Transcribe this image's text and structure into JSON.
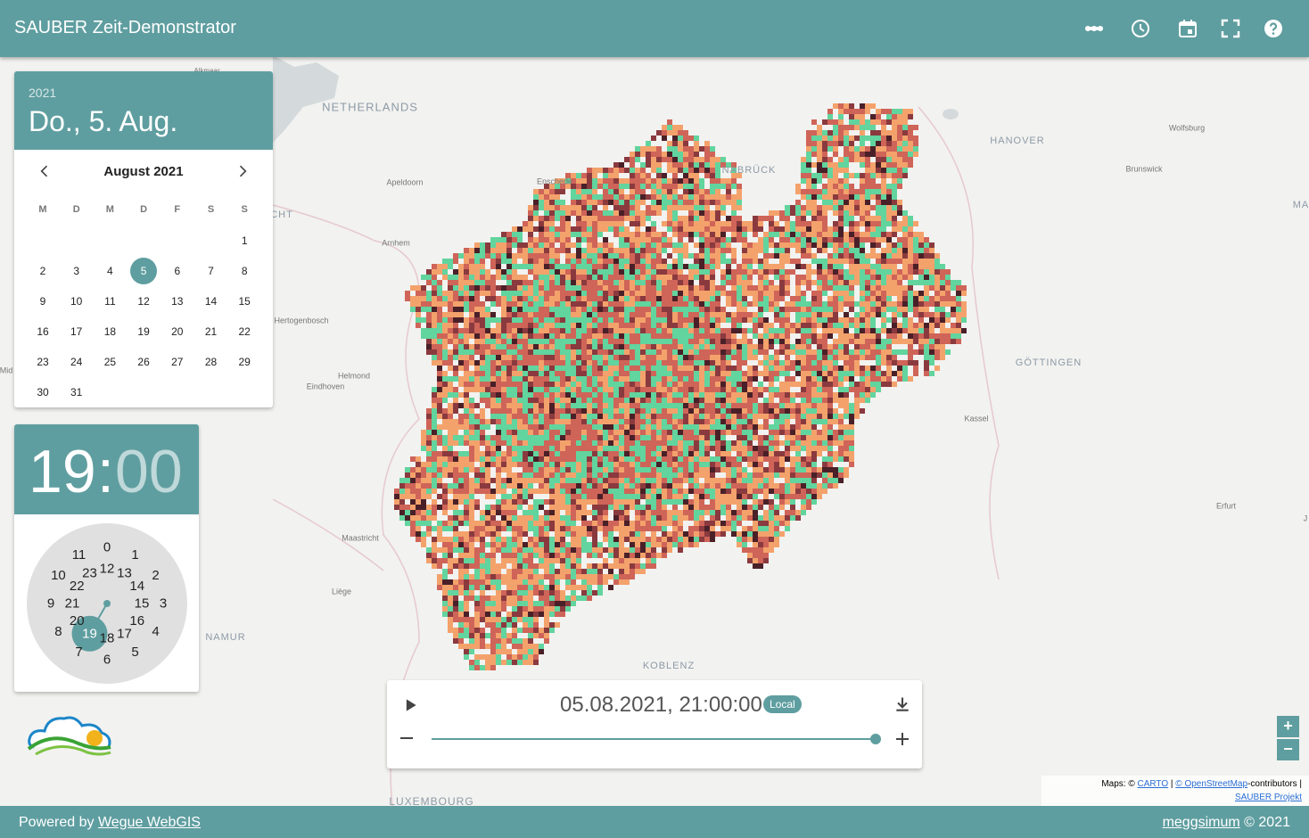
{
  "header": {
    "title": "SAUBER Zeit-Demonstrator"
  },
  "map": {
    "labels": [
      "NETHERLANDS",
      "HANOVER",
      "Wolfsburg",
      "Apeldoorn",
      "Enschede",
      "NABRÜCK",
      "Brunswick",
      "MA",
      "CHT",
      "Arnhem",
      "Hertogenbosch",
      "Helmond",
      "Eindhoven",
      "GÖTTINGEN",
      "Kassel",
      "Erfurt",
      "Maastricht",
      "Liège",
      "NAMUR",
      "KOBLENZ",
      "LUXEMBOURG",
      "J",
      "Mid",
      "Alkmaar"
    ]
  },
  "date_picker": {
    "year": "2021",
    "date": "Do., 5. Aug.",
    "month": "August 2021",
    "weekdays": [
      "M",
      "D",
      "M",
      "D",
      "F",
      "S",
      "S"
    ],
    "days": [
      1,
      2,
      3,
      4,
      5,
      6,
      7,
      8,
      9,
      10,
      11,
      12,
      13,
      14,
      15,
      16,
      17,
      18,
      19,
      20,
      21,
      22,
      23,
      24,
      25,
      26,
      27,
      28,
      29,
      30,
      31
    ],
    "selected_day": 5
  },
  "time_picker": {
    "hour": "19",
    "separator": ":",
    "minute": "00",
    "hours": [
      0,
      1,
      2,
      3,
      4,
      5,
      6,
      7,
      8,
      9,
      10,
      11,
      12,
      13,
      14,
      15,
      16,
      17,
      18,
      19,
      20,
      21,
      22,
      23
    ],
    "selected_hour": 19
  },
  "player": {
    "timestamp": "05.08.2021, 21:00:00",
    "timezone": "Local"
  },
  "zoom": {
    "in": "+",
    "out": "−"
  },
  "attribution": {
    "prefix": "Maps: ©",
    "carto": "CARTO",
    "separator": "|",
    "osm": "© OpenStreetMap",
    "suffix": "-contributors |",
    "project": "SAUBER Projekt"
  },
  "footer": {
    "powered_by": "Powered by",
    "link": "Wegue WebGIS",
    "author": "meggsimum",
    "copyright": "© 2021"
  }
}
